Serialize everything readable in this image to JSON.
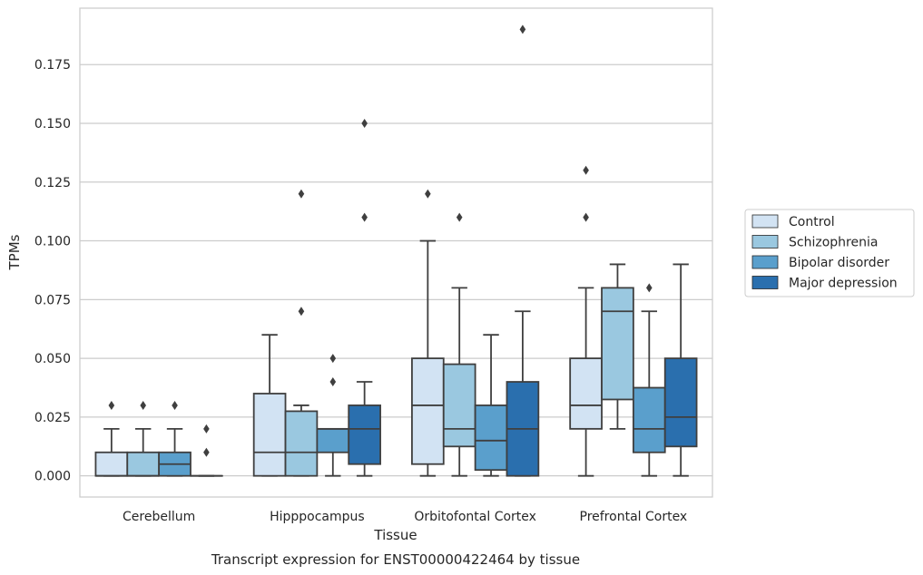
{
  "chart_data": {
    "type": "box",
    "title": "Transcript expression for ENST00000422464 by tissue",
    "xlabel": "Tissue",
    "ylabel": "TPMs",
    "ylim": [
      -0.009,
      0.199
    ],
    "yticks": [
      "0.000",
      "0.025",
      "0.050",
      "0.075",
      "0.100",
      "0.125",
      "0.150",
      "0.175"
    ],
    "categories": [
      "Cerebellum",
      "Hipppocampus",
      "Orbitofontal Cortex",
      "Prefrontal Cortex"
    ],
    "grid": "horizontal",
    "legend_position": "right",
    "series": [
      {
        "name": "Control",
        "color": "#d2e3f3",
        "boxes": [
          {
            "whisker_low": 0.0,
            "q1": 0.0,
            "median": 0.0,
            "q3": 0.01,
            "whisker_high": 0.02,
            "outliers": [
              0.03
            ]
          },
          {
            "whisker_low": 0.0,
            "q1": 0.0,
            "median": 0.01,
            "q3": 0.035,
            "whisker_high": 0.06,
            "outliers": []
          },
          {
            "whisker_low": 0.0,
            "q1": 0.005,
            "median": 0.03,
            "q3": 0.05,
            "whisker_high": 0.1,
            "outliers": [
              0.12
            ]
          },
          {
            "whisker_low": 0.0,
            "q1": 0.02,
            "median": 0.03,
            "q3": 0.05,
            "whisker_high": 0.08,
            "outliers": [
              0.11,
              0.13
            ]
          }
        ]
      },
      {
        "name": "Schizophrenia",
        "color": "#9ac8e0",
        "boxes": [
          {
            "whisker_low": 0.0,
            "q1": 0.0,
            "median": 0.0,
            "q3": 0.01,
            "whisker_high": 0.02,
            "outliers": [
              0.03
            ]
          },
          {
            "whisker_low": 0.0,
            "q1": 0.0,
            "median": 0.01,
            "q3": 0.0275,
            "whisker_high": 0.03,
            "outliers": [
              0.07,
              0.12
            ]
          },
          {
            "whisker_low": 0.0,
            "q1": 0.0125,
            "median": 0.02,
            "q3": 0.0475,
            "whisker_high": 0.08,
            "outliers": [
              0.11
            ]
          },
          {
            "whisker_low": 0.02,
            "q1": 0.0325,
            "median": 0.07,
            "q3": 0.08,
            "whisker_high": 0.09,
            "outliers": []
          }
        ]
      },
      {
        "name": "Bipolar disorder",
        "color": "#5a9fcc",
        "boxes": [
          {
            "whisker_low": 0.0,
            "q1": 0.0,
            "median": 0.005,
            "q3": 0.01,
            "whisker_high": 0.02,
            "outliers": [
              0.03
            ]
          },
          {
            "whisker_low": 0.0,
            "q1": 0.01,
            "median": 0.02,
            "q3": 0.02,
            "whisker_high": 0.02,
            "outliers": [
              0.04,
              0.05
            ]
          },
          {
            "whisker_low": 0.0,
            "q1": 0.0025,
            "median": 0.015,
            "q3": 0.03,
            "whisker_high": 0.06,
            "outliers": []
          },
          {
            "whisker_low": 0.0,
            "q1": 0.01,
            "median": 0.02,
            "q3": 0.0375,
            "whisker_high": 0.07,
            "outliers": [
              0.08
            ]
          }
        ]
      },
      {
        "name": "Major depression",
        "color": "#2a6fae",
        "boxes": [
          {
            "whisker_low": 0.0,
            "q1": 0.0,
            "median": 0.0,
            "q3": 0.0,
            "whisker_high": 0.0,
            "outliers": [
              0.01,
              0.02
            ]
          },
          {
            "whisker_low": 0.0,
            "q1": 0.005,
            "median": 0.02,
            "q3": 0.03,
            "whisker_high": 0.04,
            "outliers": [
              0.11,
              0.15
            ]
          },
          {
            "whisker_low": 0.0,
            "q1": 0.0,
            "median": 0.02,
            "q3": 0.04,
            "whisker_high": 0.07,
            "outliers": [
              0.19
            ]
          },
          {
            "whisker_low": 0.0,
            "q1": 0.0125,
            "median": 0.025,
            "q3": 0.05,
            "whisker_high": 0.09,
            "outliers": []
          }
        ]
      }
    ]
  }
}
